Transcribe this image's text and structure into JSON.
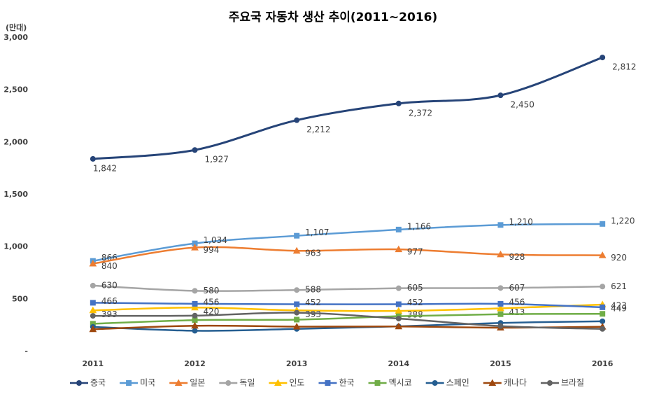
{
  "chart_data": {
    "type": "line",
    "title": "주요국 자동차 생산 추이(2011~2016)",
    "y_label": "(만대)",
    "categories": [
      "2011",
      "2012",
      "2013",
      "2014",
      "2015",
      "2016"
    ],
    "ylim": [
      0,
      3000
    ],
    "yticks": [
      {
        "value": 0,
        "label": "-"
      },
      500,
      {
        "value": 1000,
        "label": "1,000"
      },
      {
        "value": 1500,
        "label": "1,500"
      },
      {
        "value": 2000,
        "label": "2,000"
      },
      {
        "value": 2500,
        "label": "2,500"
      },
      {
        "value": 3000,
        "label": "3,000"
      }
    ],
    "grid": false,
    "legend": "bottom",
    "series": [
      {
        "name": "중국",
        "color": "#264478",
        "marker": "circle",
        "values": [
          1842,
          1927,
          2212,
          2372,
          2450,
          2812
        ],
        "value_labels": [
          "1,842",
          "1,927",
          "2,212",
          "2,372",
          "2,450",
          "2,812"
        ]
      },
      {
        "name": "미국",
        "color": "#5b9bd5",
        "marker": "square",
        "values": [
          866,
          1034,
          1107,
          1166,
          1210,
          1220
        ],
        "value_labels": [
          "866",
          "1,034",
          "1,107",
          "1,166",
          "1,210",
          "1,220"
        ]
      },
      {
        "name": "일본",
        "color": "#ed7d31",
        "marker": "triangle",
        "values": [
          840,
          994,
          963,
          977,
          928,
          920
        ]
      },
      {
        "name": "독일",
        "color": "#a5a5a5",
        "marker": "circle",
        "values": [
          630,
          580,
          588,
          605,
          607,
          621
        ]
      },
      {
        "name": "인도",
        "color": "#ffc000",
        "marker": "triangle",
        "values": [
          393,
          420,
          393,
          388,
          413,
          449
        ]
      },
      {
        "name": "한국",
        "color": "#4472c4",
        "marker": "square",
        "values": [
          466,
          456,
          452,
          452,
          456,
          423
        ]
      },
      {
        "name": "멕시코",
        "color": "#70ad47",
        "marker": "square",
        "values": [
          265,
          300,
          305,
          337,
          357,
          360
        ]
      },
      {
        "name": "스페인",
        "color": "#255e91",
        "marker": "circle",
        "values": [
          235,
          198,
          216,
          240,
          273,
          289
        ]
      },
      {
        "name": "캐나다",
        "color": "#9e480e",
        "marker": "triangle",
        "values": [
          213,
          246,
          238,
          239,
          228,
          237
        ]
      },
      {
        "name": "브라질",
        "color": "#636363",
        "marker": "circle",
        "values": [
          341,
          343,
          371,
          315,
          243,
          216
        ]
      }
    ]
  }
}
